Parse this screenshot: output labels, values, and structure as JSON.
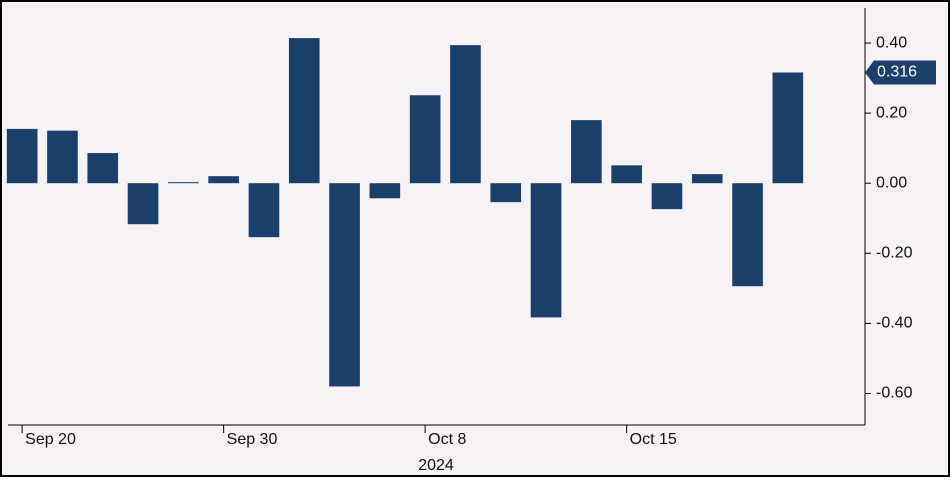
{
  "chart_data": {
    "type": "bar",
    "categories": [
      "Sep 20",
      null,
      null,
      null,
      null,
      "Sep 30",
      null,
      null,
      null,
      null,
      "Oct 8",
      null,
      null,
      null,
      null,
      "Oct 15",
      null,
      null,
      null,
      null
    ],
    "values": [
      0.155,
      0.15,
      0.086,
      -0.117,
      0.003,
      0.02,
      -0.154,
      0.414,
      -0.58,
      -0.043,
      0.251,
      0.394,
      -0.054,
      -0.383,
      0.18,
      0.051,
      -0.074,
      0.026,
      -0.294,
      0.316
    ],
    "value_labels": [
      null,
      null,
      null,
      null,
      null,
      null,
      null,
      null,
      null,
      null,
      null,
      null,
      null,
      null,
      null,
      null,
      null,
      null,
      null,
      "0.316"
    ],
    "color": "#1b3f6b",
    "xlabel": "2024",
    "ylim": [
      -0.69,
      0.5
    ],
    "yticks": [
      {
        "value": 0.4,
        "label": "0.40"
      },
      {
        "value": 0.2,
        "label": "0.20"
      },
      {
        "value": 0,
        "label": "0.00"
      },
      {
        "value": -0.2,
        "label": "-0.20"
      },
      {
        "value": -0.4,
        "label": "-0.40"
      },
      {
        "value": -0.6,
        "label": "-0.60"
      }
    ]
  }
}
